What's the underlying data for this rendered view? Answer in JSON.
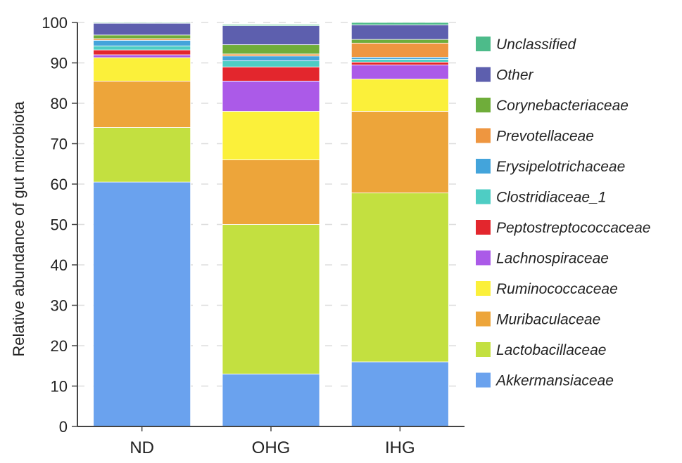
{
  "chart_data": {
    "type": "bar",
    "stacked": true,
    "title": "",
    "xlabel": "",
    "ylabel": "Relative abundance of gut microbiota",
    "ylim": [
      0,
      100
    ],
    "yticks": [
      0,
      10,
      20,
      30,
      40,
      50,
      60,
      70,
      80,
      90,
      100
    ],
    "grid": "horizontal dashed",
    "legend_position": "right",
    "categories": [
      "ND",
      "OHG",
      "IHG"
    ],
    "series": [
      {
        "name": "Akkermansiaceae",
        "color": "#6aa2ee",
        "values": [
          60.5,
          13,
          16
        ]
      },
      {
        "name": "Lactobacillaceae",
        "color": "#c3e040",
        "values": [
          13.5,
          37,
          41.8
        ]
      },
      {
        "name": "Muribaculaceae",
        "color": "#eda53a",
        "values": [
          11.5,
          16,
          20.2
        ]
      },
      {
        "name": "Ruminococcaceae",
        "color": "#fbf03a",
        "values": [
          5.8,
          12,
          8
        ]
      },
      {
        "name": "Lachnospiraceae",
        "color": "#ab5ae8",
        "values": [
          0.7,
          7.5,
          3.5
        ]
      },
      {
        "name": "Peptostreptococcaceae",
        "color": "#e3262d",
        "values": [
          1.2,
          3.5,
          0.7
        ]
      },
      {
        "name": "Clostridiaceae_1",
        "color": "#4ecdc4",
        "values": [
          1,
          1.5,
          0.7
        ]
      },
      {
        "name": "Erysipelotrichaceae",
        "color": "#43a4db",
        "values": [
          1.4,
          1.2,
          0.5
        ]
      },
      {
        "name": "Prevotellaceae",
        "color": "#ee9640",
        "values": [
          0.4,
          0.5,
          3.5
        ]
      },
      {
        "name": "Corynebacteriaceae",
        "color": "#6fad3a",
        "values": [
          0.9,
          2.3,
          0.9
        ]
      },
      {
        "name": "Other",
        "color": "#5d5fae",
        "values": [
          2.9,
          4.7,
          3.6
        ]
      },
      {
        "name": "Unclassified",
        "color": "#4dbb8a",
        "values": [
          0.2,
          0.3,
          0.6
        ]
      }
    ],
    "legend_order": [
      "Unclassified",
      "Other",
      "Corynebacteriaceae",
      "Prevotellaceae",
      "Erysipelotrichaceae",
      "Clostridiaceae_1",
      "Peptostreptococcaceae",
      "Lachnospiraceae",
      "Ruminococcaceae",
      "Muribaculaceae",
      "Lactobacillaceae",
      "Akkermansiaceae"
    ]
  }
}
